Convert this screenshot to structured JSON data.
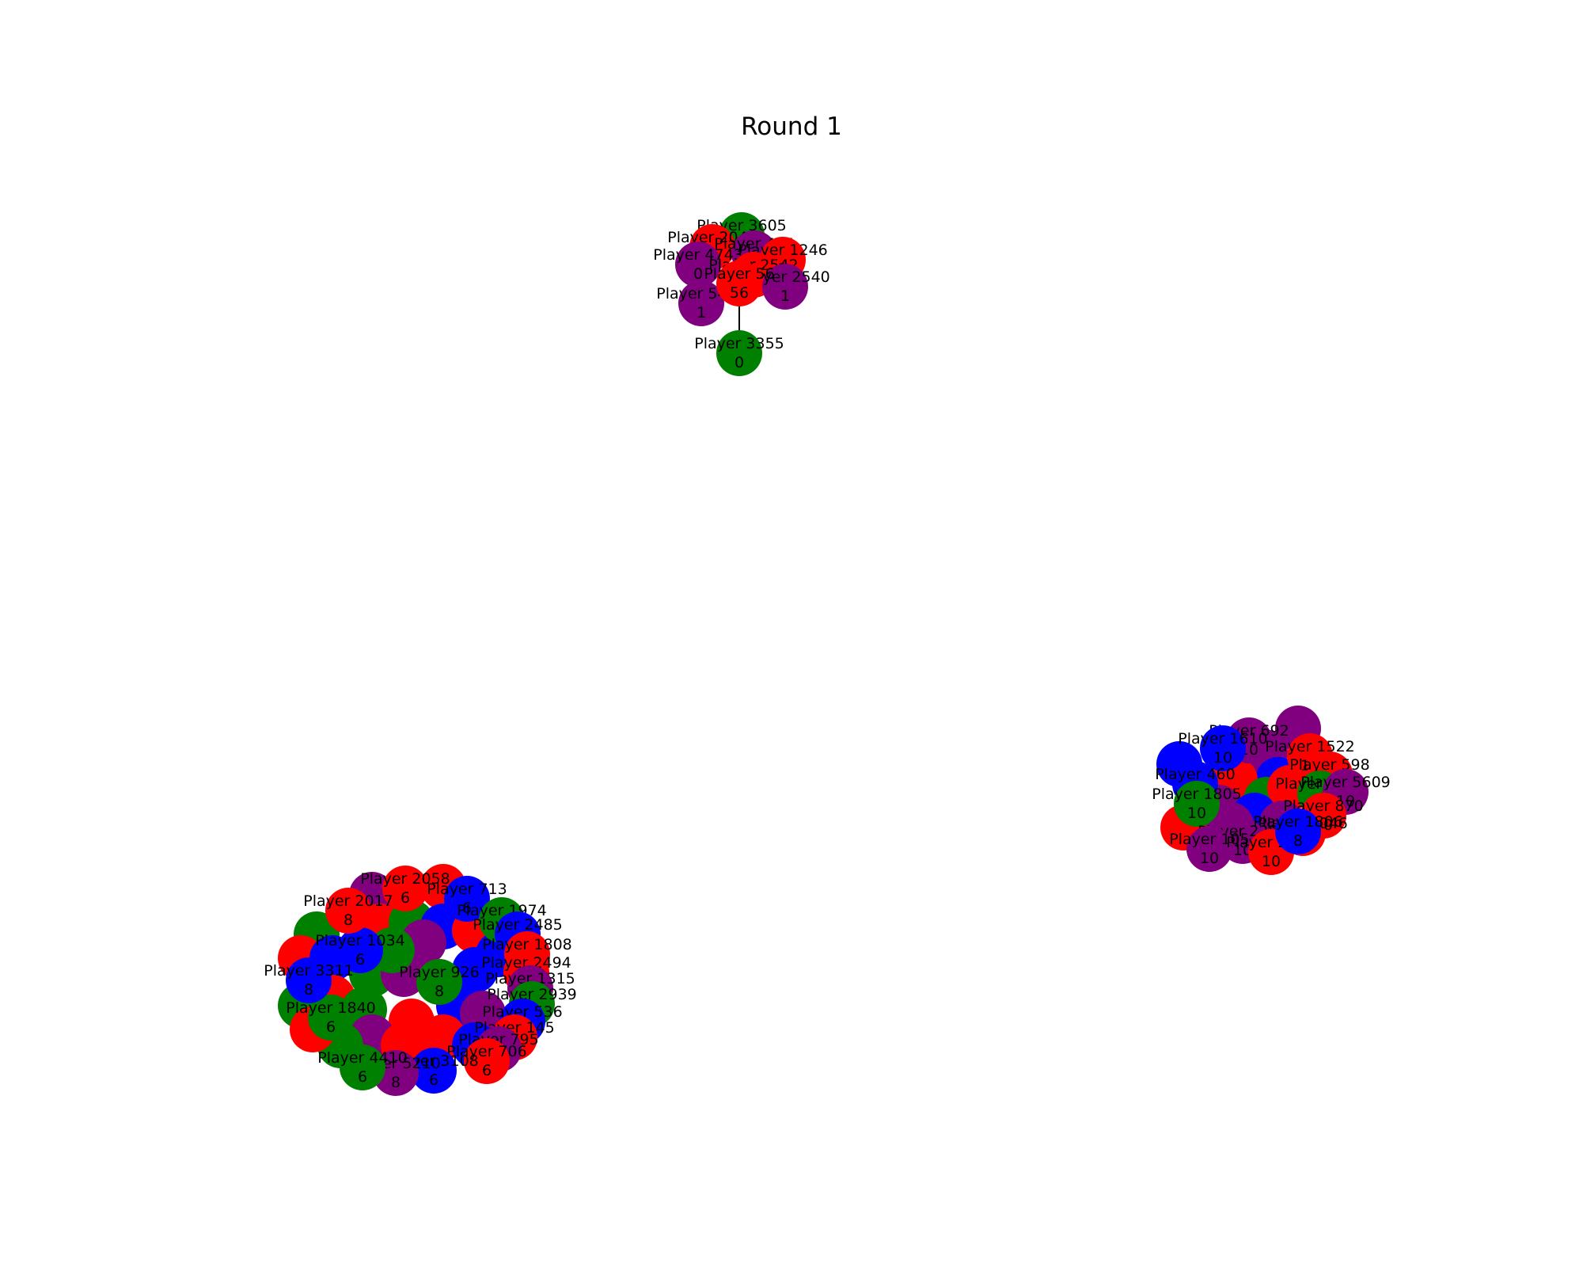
{
  "title": "Round 1",
  "colors": {
    "red": "#ff0000",
    "green": "#008000",
    "blue": "#0000ff",
    "purple": "#800080",
    "edge": "#000000"
  },
  "clusters": [
    {
      "id": "top",
      "nodes": [
        {
          "id": "p3605",
          "player": "Player 3605",
          "value": "2",
          "color": "green"
        },
        {
          "id": "p2044",
          "player": "Player 2044",
          "value": "2",
          "color": "red"
        },
        {
          "id": "p454",
          "player": "Player 454",
          "value": "0",
          "color": "purple"
        },
        {
          "id": "p1246",
          "player": "Player 1246",
          "value": "2",
          "color": "red"
        },
        {
          "id": "p4743",
          "player": "Player 4743",
          "value": "0",
          "color": "purple"
        },
        {
          "id": "p2542",
          "player": "Player 2542",
          "value": "2",
          "color": "red"
        },
        {
          "id": "p2540",
          "player": "Player 2540",
          "value": "1",
          "color": "purple"
        },
        {
          "id": "p5420",
          "player": "Player 5420",
          "value": "1",
          "color": "purple"
        },
        {
          "id": "p56",
          "player": "Player 56",
          "value": "56",
          "color": "red"
        },
        {
          "id": "p3355",
          "player": "Player 3355",
          "value": "0",
          "color": "green"
        }
      ],
      "edges": [
        [
          "p56",
          "p3355"
        ]
      ]
    },
    {
      "id": "right",
      "nodes": [
        {
          "id": "r692",
          "player": "Player 692",
          "value": "10",
          "color": "purple"
        },
        {
          "id": "r1610",
          "player": "Player 1610",
          "value": "10",
          "color": "blue"
        },
        {
          "id": "r1522",
          "player": "Player 1522",
          "value": "10",
          "color": "red"
        },
        {
          "id": "r598",
          "player": "Player 598",
          "value": "10",
          "color": "red"
        },
        {
          "id": "r4106",
          "player": "Player 4106",
          "value": "10",
          "color": "green"
        },
        {
          "id": "r5609",
          "player": "Player 5609",
          "value": "10",
          "color": "purple"
        },
        {
          "id": "r870",
          "player": "Player 870",
          "value": "10",
          "color": "red"
        },
        {
          "id": "r2046",
          "player": "Player 2046",
          "value": "10",
          "color": "red"
        },
        {
          "id": "r460",
          "player": "Player 460",
          "value": "10",
          "color": "blue"
        },
        {
          "id": "r1805",
          "player": "Player 1805",
          "value": "10",
          "color": "green"
        },
        {
          "id": "r2255",
          "player": "Player 2255",
          "value": "10",
          "color": "purple"
        },
        {
          "id": "r105",
          "player": "Player 105",
          "value": "10",
          "color": "purple"
        },
        {
          "id": "r2710",
          "player": "Player 2710",
          "value": "10",
          "color": "red"
        },
        {
          "id": "r1806",
          "player": "Player 1806",
          "value": "8",
          "color": "blue"
        }
      ],
      "edges": []
    },
    {
      "id": "left",
      "nodes": [
        {
          "id": "l2058",
          "player": "Player 2058",
          "value": "6",
          "color": "red"
        },
        {
          "id": "l713",
          "player": "Player 713",
          "value": "6",
          "color": "blue"
        },
        {
          "id": "l1974",
          "player": "Player 1974",
          "value": "8",
          "color": "green"
        },
        {
          "id": "l2485",
          "player": "Player 2485",
          "value": "6",
          "color": "blue"
        },
        {
          "id": "l1808",
          "player": "Player 1808",
          "value": "8",
          "color": "red"
        },
        {
          "id": "l2494",
          "player": "Player 2494",
          "value": "6",
          "color": "red"
        },
        {
          "id": "l1315",
          "player": "Player 1315",
          "value": "8",
          "color": "purple"
        },
        {
          "id": "l2939",
          "player": "Player 2939",
          "value": "6",
          "color": "green"
        },
        {
          "id": "l536",
          "player": "Player 536",
          "value": "8",
          "color": "blue"
        },
        {
          "id": "l145",
          "player": "Player 145",
          "value": "6",
          "color": "red"
        },
        {
          "id": "l795",
          "player": "Player 795",
          "value": "8",
          "color": "purple"
        },
        {
          "id": "l706",
          "player": "Player 706",
          "value": "6",
          "color": "red"
        },
        {
          "id": "l926",
          "player": "Player 926",
          "value": "8",
          "color": "green"
        },
        {
          "id": "l1034",
          "player": "Player 1034",
          "value": "6",
          "color": "blue"
        },
        {
          "id": "l2017",
          "player": "Player 2017",
          "value": "8",
          "color": "red"
        },
        {
          "id": "l1840",
          "player": "Player 1840",
          "value": "6",
          "color": "green"
        },
        {
          "id": "l3108",
          "player": "Player 3108",
          "value": "6",
          "color": "blue"
        },
        {
          "id": "l5210",
          "player": "Player 5210",
          "value": "8",
          "color": "purple"
        },
        {
          "id": "l4410",
          "player": "Player 4410",
          "value": "6",
          "color": "green"
        },
        {
          "id": "l3311",
          "player": "Player 3311",
          "value": "8",
          "color": "blue"
        }
      ],
      "edges": []
    }
  ]
}
